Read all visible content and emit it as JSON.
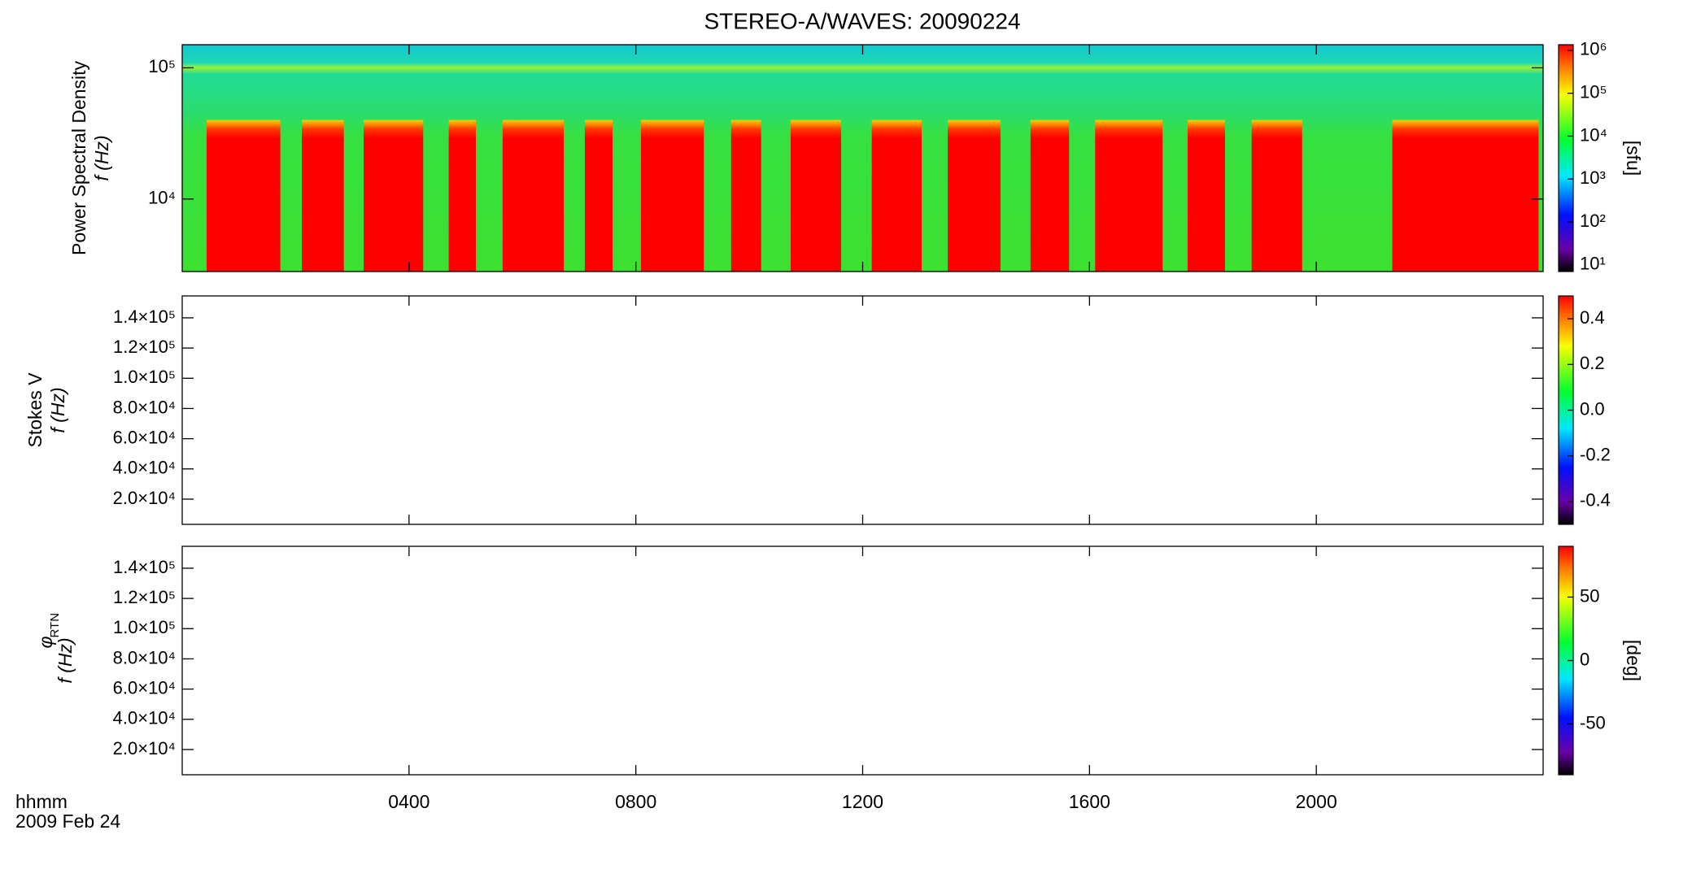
{
  "chart_data": [
    {
      "type": "heatmap",
      "title": "STEREO-A/WAVES: 20090224",
      "ylabel": [
        "Power Spectral Density",
        "f (Hz)"
      ],
      "xlim": [
        0,
        24
      ],
      "xticks": [
        4,
        8,
        12,
        16,
        20
      ],
      "ylim": [
        2800,
        150000
      ],
      "log_y": true,
      "yticks": [
        {
          "value": 10000,
          "label": "10⁴"
        },
        {
          "value": 100000,
          "label": "10⁵"
        }
      ],
      "bursts": [
        [
          0.43,
          1.73
        ],
        [
          2.11,
          2.85
        ],
        [
          3.2,
          4.25
        ],
        [
          4.7,
          5.18
        ],
        [
          5.65,
          6.73
        ],
        [
          7.1,
          7.59
        ],
        [
          8.09,
          9.2
        ],
        [
          9.68,
          10.21
        ],
        [
          10.73,
          11.62
        ],
        [
          12.16,
          13.04
        ],
        [
          13.5,
          14.43
        ],
        [
          14.96,
          15.64
        ],
        [
          16.1,
          17.29
        ],
        [
          17.73,
          18.39
        ],
        [
          18.86,
          19.75
        ],
        [
          21.34,
          23.92
        ]
      ],
      "burst_freq_max": 40000,
      "burst_color": "#ff0000",
      "colorbar": {
        "lim": [
          7,
          1350000
        ],
        "log": true,
        "label": "[sfu]",
        "ticks": [
          {
            "value": 10,
            "label": "10¹"
          },
          {
            "value": 100,
            "label": "10²"
          },
          {
            "value": 1000,
            "label": "10³"
          },
          {
            "value": 10000,
            "label": "10⁴"
          },
          {
            "value": 100000,
            "label": "10⁵"
          },
          {
            "value": 1000000,
            "label": "10⁶"
          }
        ]
      }
    },
    {
      "type": "heatmap",
      "ylabel": [
        "Stokes V",
        "f (Hz)"
      ],
      "xlim": [
        0,
        24
      ],
      "xticks": [
        4,
        8,
        12,
        16,
        20
      ],
      "ylim": [
        3300,
        154500
      ],
      "log_y": false,
      "yticks": [
        {
          "value": 20000,
          "label": "2.0×10⁴"
        },
        {
          "value": 40000,
          "label": "4.0×10⁴"
        },
        {
          "value": 60000,
          "label": "6.0×10⁴"
        },
        {
          "value": 80000,
          "label": "8.0×10⁴"
        },
        {
          "value": 100000,
          "label": "1.0×10⁵"
        },
        {
          "value": 120000,
          "label": "1.2×10⁵"
        },
        {
          "value": 140000,
          "label": "1.4×10⁵"
        }
      ],
      "colorbar": {
        "lim": [
          -0.5,
          0.5
        ],
        "log": false,
        "ticks": [
          {
            "value": -0.4,
            "label": "-0.4"
          },
          {
            "value": -0.2,
            "label": "-0.2"
          },
          {
            "value": 0,
            "label": "0.0"
          },
          {
            "value": 0.2,
            "label": "0.2"
          },
          {
            "value": 0.4,
            "label": "0.4"
          }
        ]
      }
    },
    {
      "type": "heatmap",
      "ylabel": [
        "φ",
        "RTN",
        "f (Hz)"
      ],
      "xlim": [
        0,
        24
      ],
      "xlabel": "hhmm",
      "date": "2009 Feb 24",
      "xticks": [
        {
          "value": 4,
          "label": "0400"
        },
        {
          "value": 8,
          "label": "0800"
        },
        {
          "value": 12,
          "label": "1200"
        },
        {
          "value": 16,
          "label": "1600"
        },
        {
          "value": 20,
          "label": "2000"
        }
      ],
      "ylim": [
        3300,
        154500
      ],
      "log_y": false,
      "yticks": [
        {
          "value": 20000,
          "label": "2.0×10⁴"
        },
        {
          "value": 40000,
          "label": "4.0×10⁴"
        },
        {
          "value": 60000,
          "label": "6.0×10⁴"
        },
        {
          "value": 80000,
          "label": "8.0×10⁴"
        },
        {
          "value": 100000,
          "label": "1.0×10⁵"
        },
        {
          "value": 120000,
          "label": "1.2×10⁵"
        },
        {
          "value": 140000,
          "label": "1.4×10⁵"
        }
      ],
      "colorbar": {
        "lim": [
          -90,
          90
        ],
        "log": false,
        "label": "[deg]",
        "ticks": [
          -50,
          0,
          50
        ]
      }
    }
  ]
}
